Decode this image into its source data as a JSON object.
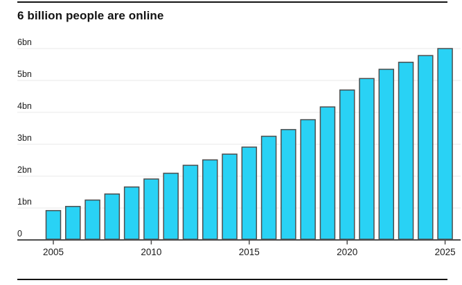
{
  "page": {
    "title": "6 billion people are online"
  },
  "chart_data": {
    "type": "bar",
    "title": "6 billion people are online",
    "categories": [
      "2005",
      "2006",
      "2007",
      "2008",
      "2009",
      "2010",
      "2011",
      "2012",
      "2013",
      "2014",
      "2015",
      "2016",
      "2017",
      "2018",
      "2019",
      "2020",
      "2021",
      "2022",
      "2023",
      "2024",
      "2025"
    ],
    "values": [
      0.92,
      1.05,
      1.25,
      1.44,
      1.66,
      1.91,
      2.09,
      2.34,
      2.51,
      2.69,
      2.91,
      3.25,
      3.46,
      3.77,
      4.17,
      4.7,
      5.06,
      5.35,
      5.57,
      5.78,
      6.0
    ],
    "unit": "billion people",
    "xlabel": "",
    "ylabel": "",
    "ylim": [
      0,
      6.2
    ],
    "ytick_values": [
      0,
      1,
      2,
      3,
      4,
      5,
      6
    ],
    "ytick_labels": [
      "0",
      "1bn",
      "2bn",
      "3bn",
      "4bn",
      "5bn",
      "6bn"
    ],
    "xtick_labels": [
      "2005",
      "2010",
      "2015",
      "2020",
      "2025"
    ],
    "grid": "horizontal",
    "legend": "none",
    "colors": {
      "bar_fill": "#29d2f5",
      "bar_border": "#4d4d4d",
      "axis": "#4d4d4d",
      "gridline": "#eaeaea",
      "rule": "#121212",
      "text": "#1a1a1a"
    }
  }
}
